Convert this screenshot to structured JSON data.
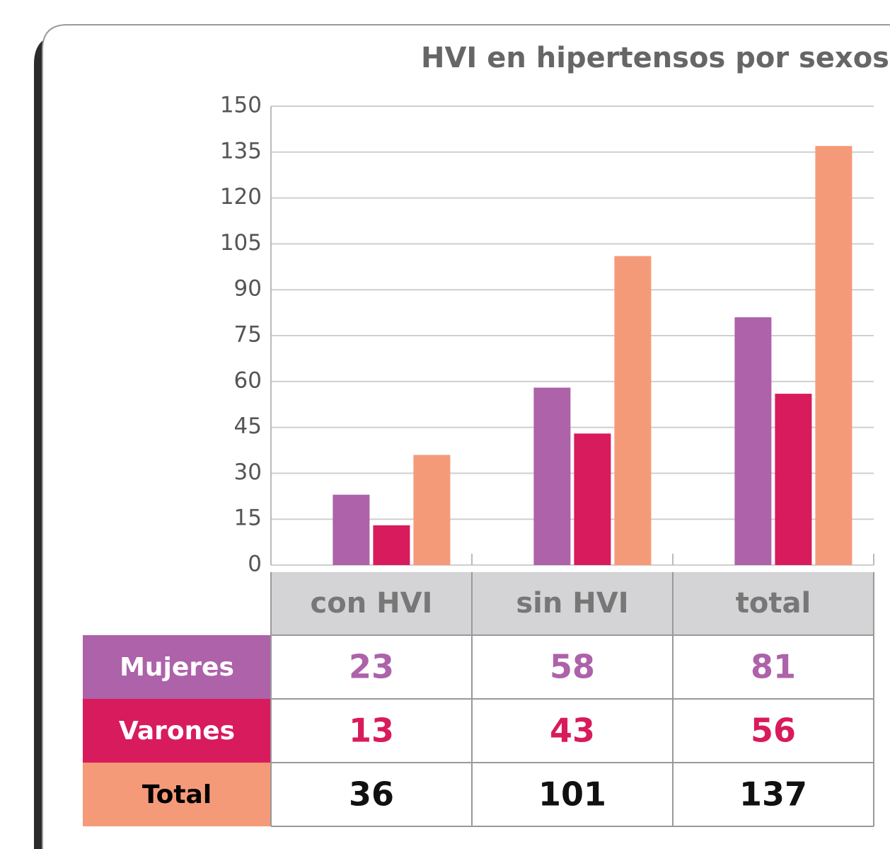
{
  "chart_data": {
    "type": "bar",
    "title": "HVI en hipertensos por sexos",
    "categories": [
      "con HVI",
      "sin HVI",
      "total"
    ],
    "series": [
      {
        "name": "Mujeres",
        "color": "#ad62aa",
        "values": [
          23,
          58,
          81
        ]
      },
      {
        "name": "Varones",
        "color": "#d81b5c",
        "values": [
          13,
          43,
          56
        ]
      },
      {
        "name": "Total",
        "color": "#f59a78",
        "values": [
          36,
          101,
          137
        ]
      }
    ],
    "ylim": [
      0,
      150
    ],
    "yticks": [
      0,
      15,
      30,
      45,
      60,
      75,
      90,
      105,
      120,
      135,
      150
    ],
    "grid": true
  }
}
